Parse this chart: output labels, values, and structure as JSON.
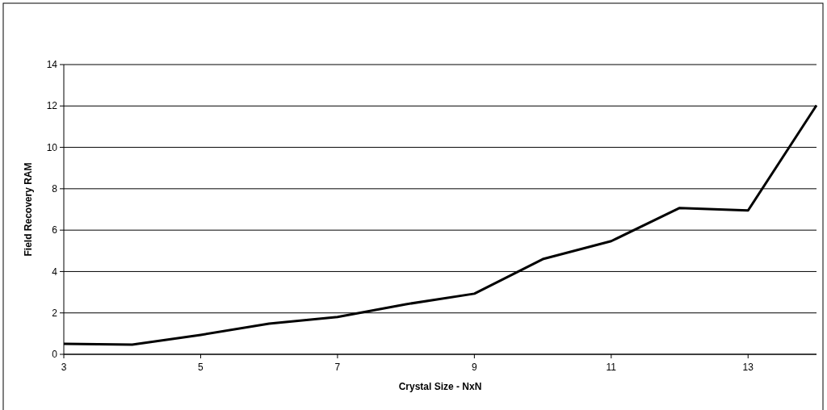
{
  "chart_data": {
    "type": "line",
    "xlabel": "Crystal Size - NxN",
    "ylabel": "Field Recovery RAM",
    "x": [
      3,
      4,
      5,
      6,
      7,
      8,
      9,
      10,
      11,
      12,
      13,
      14
    ],
    "series": [
      {
        "color": "#000000",
        "values": [
          0.51,
          0.47,
          0.94,
          1.48,
          1.8,
          2.42,
          2.93,
          4.6,
          5.47,
          7.07,
          6.95,
          12.03
        ]
      }
    ],
    "xlim": [
      3,
      14
    ],
    "xticks": [
      3,
      5,
      7,
      9,
      11,
      13
    ],
    "ylim": [
      0,
      14
    ],
    "yticks": [
      0,
      2,
      4,
      6,
      8,
      10,
      12,
      14
    ],
    "grid": "y",
    "marker": "none",
    "line_style": "solid"
  }
}
